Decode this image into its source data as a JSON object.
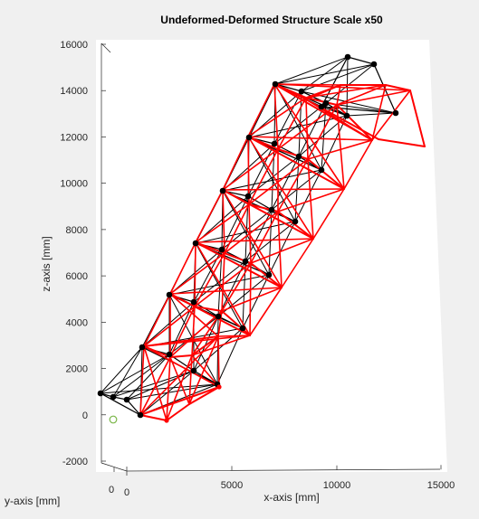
{
  "chart_data": {
    "type": "3d-line",
    "title": "Undeformed-Deformed Structure Scale x50",
    "xlabel": "x-axis [mm]",
    "ylabel": "y-axis [mm]",
    "zlabel": "z-axis [mm]",
    "xticks": [
      "0",
      "5000",
      "10000",
      "15000"
    ],
    "yticks": [
      "0",
      "0"
    ],
    "zticks": [
      "-2000",
      "0",
      "2000",
      "4000",
      "6000",
      "8000",
      "10000",
      "12000",
      "14000",
      "16000"
    ],
    "zlim": [
      -2000,
      16000
    ],
    "xlim": [
      0,
      15000
    ],
    "grid": false,
    "series": [
      {
        "color": "#000000",
        "marker": "filled-circle",
        "levels": 6
      },
      {
        "color": "#ff0000",
        "marker": "none",
        "levels": 6
      }
    ],
    "support_marker": {
      "color": "#7ab648",
      "marker": "open-circle"
    }
  }
}
